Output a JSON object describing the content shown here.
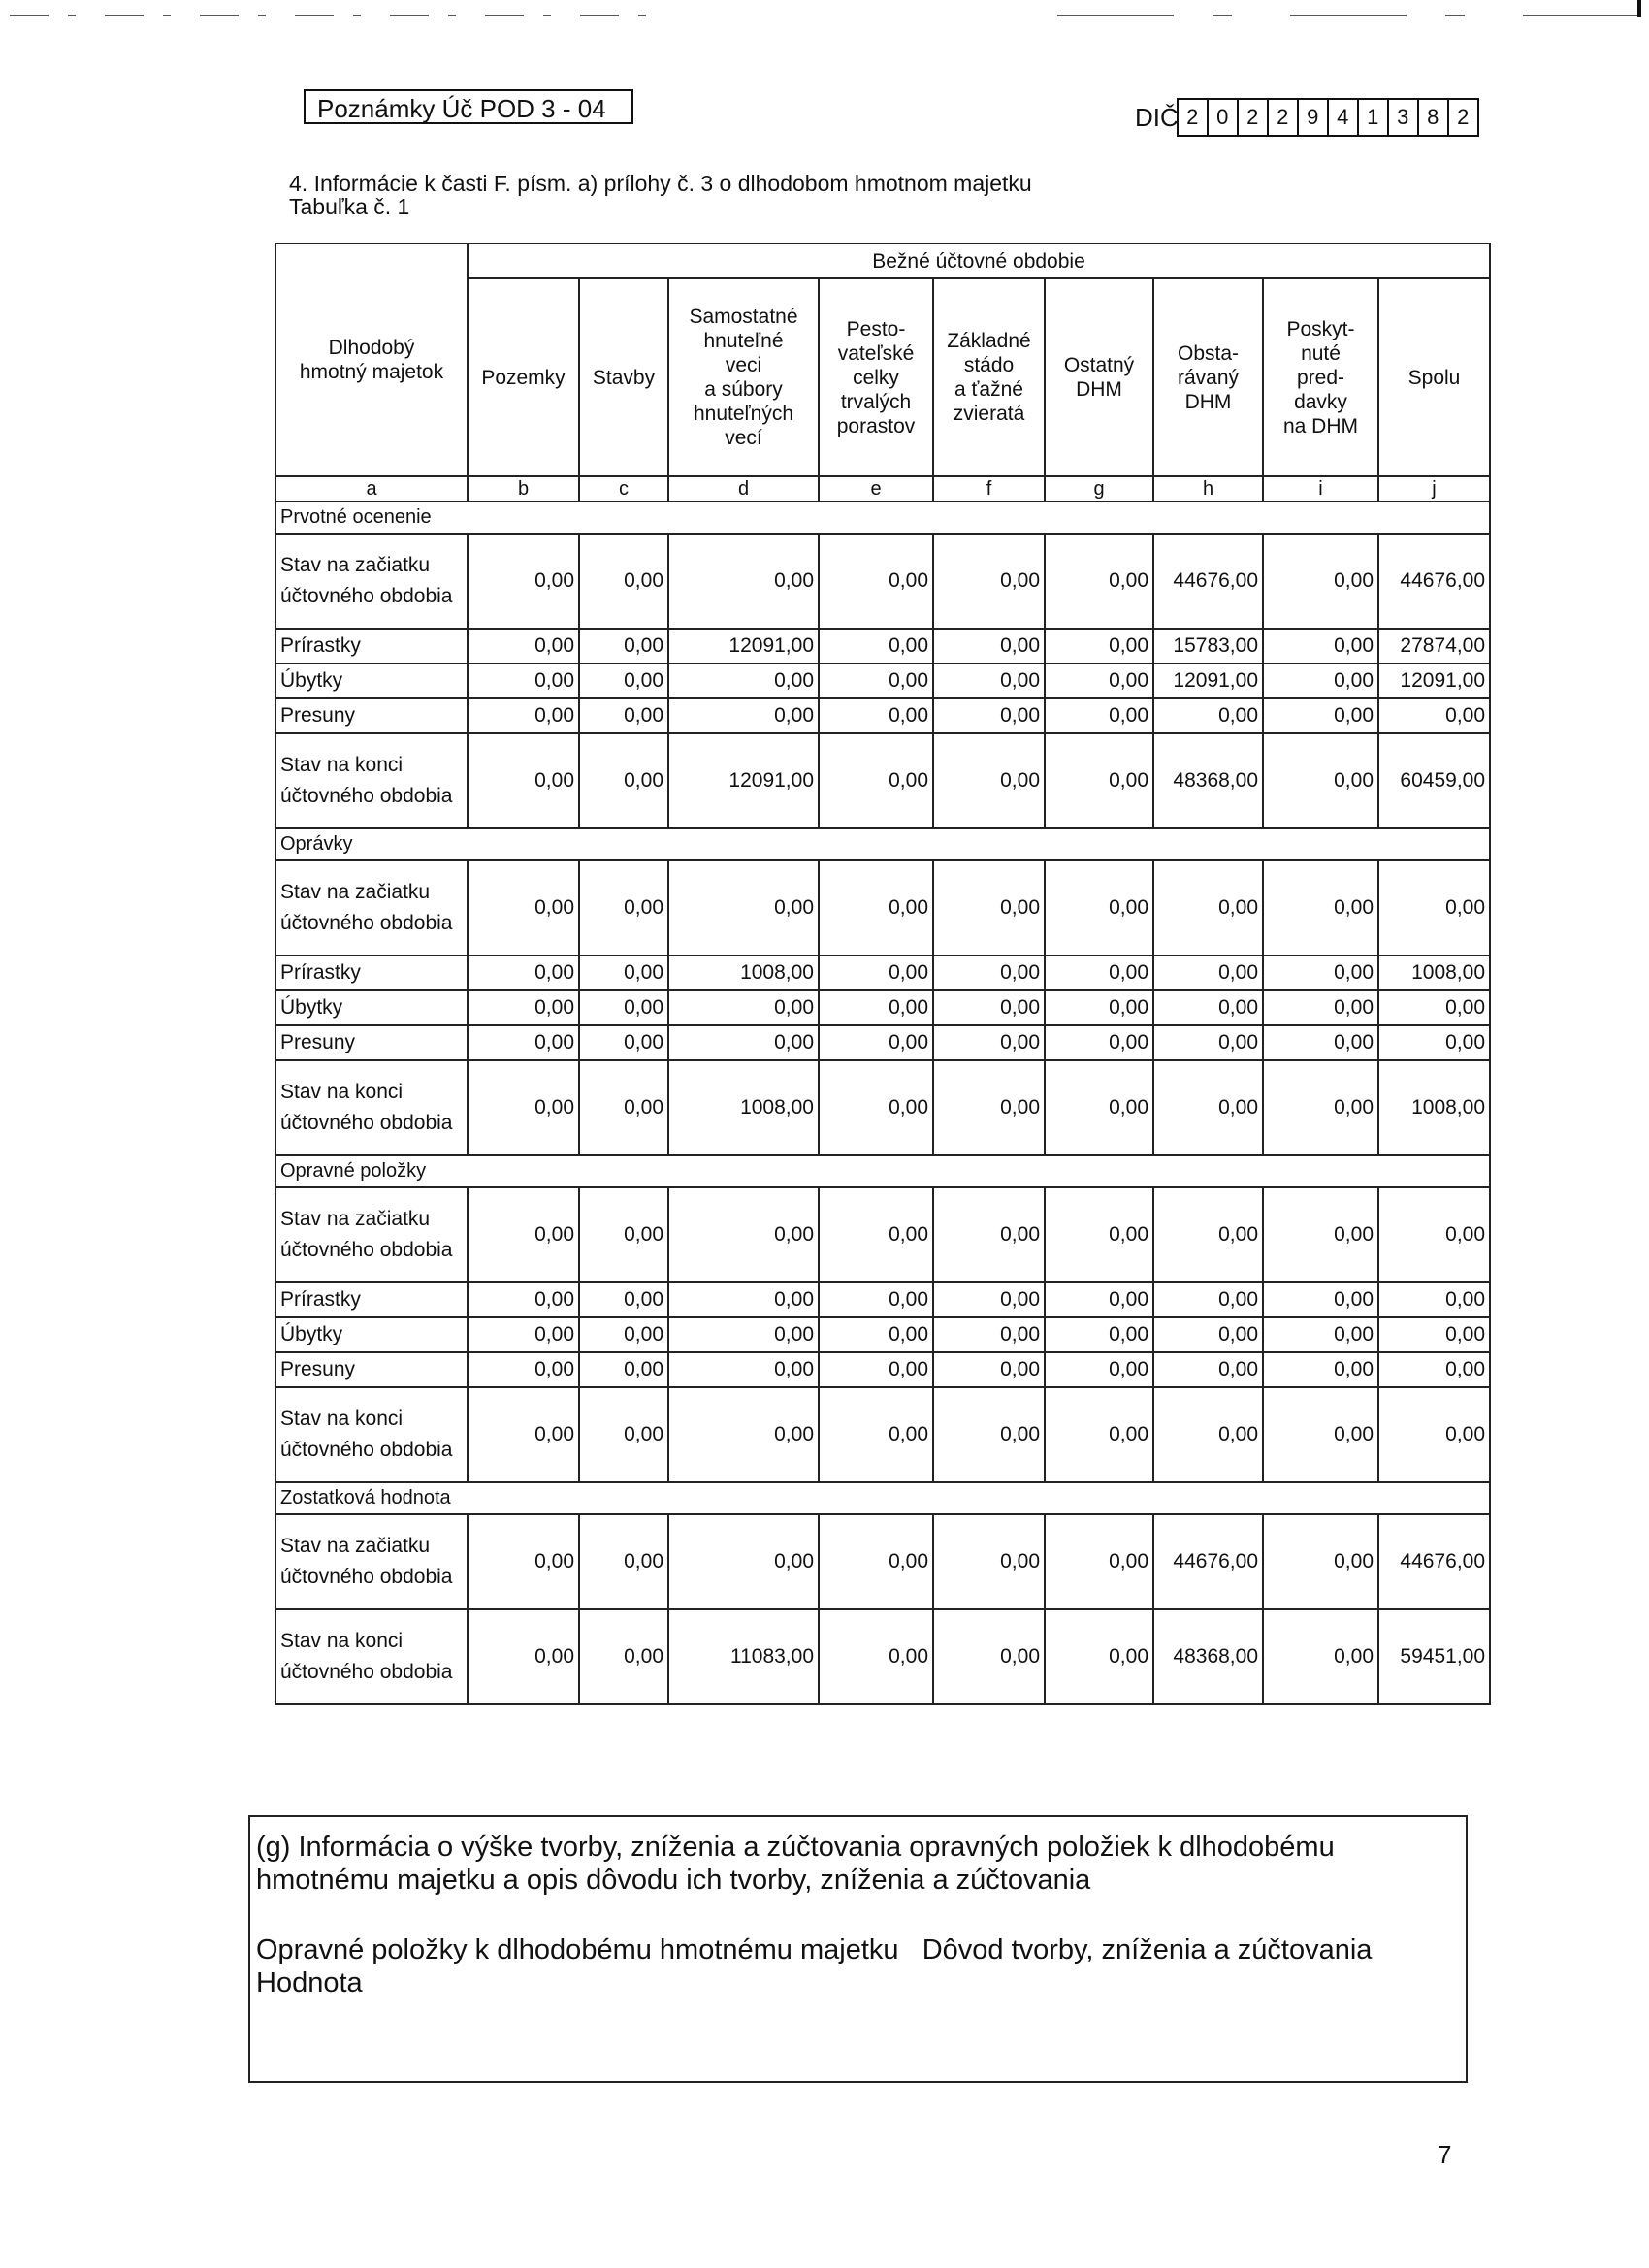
{
  "header": {
    "form_label": "Poznámky Úč POD 3 - 04",
    "dic_label": "DIČ",
    "dic_digits": [
      "2",
      "0",
      "2",
      "2",
      "9",
      "4",
      "1",
      "3",
      "8",
      "2"
    ]
  },
  "heading": "4. Informácie k časti F. písm. a) prílohy č. 3 o dlhodobom hmotnom majetku",
  "table_caption": "Tabuľka č. 1",
  "table": {
    "row_header": "Dlhodobý\nhmotný majetok",
    "group_header": "Bežné účtovné obdobie",
    "columns": [
      "Pozemky",
      "Stavby",
      "Samostatné\nhnuteľné\nveci\na súbory\nhnuteľných\nvecí",
      "Pesto-\nvateľské\ncelky\ntrvalých\nporastov",
      "Základné\nstádo\na ťažné\nzvieratá",
      "Ostatný\nDHM",
      "Obsta-\nrávaný\nDHM",
      "Poskyt-\nnuté\npred-\ndavky\nna DHM",
      "Spolu"
    ],
    "letters": [
      "a",
      "b",
      "c",
      "d",
      "e",
      "f",
      "g",
      "h",
      "i",
      "j"
    ],
    "sections": [
      {
        "title": "Prvotné ocenenie",
        "rows": [
          {
            "label": "Stav na začiatku účtovného obdobia",
            "values": [
              "0,00",
              "0,00",
              "0,00",
              "0,00",
              "0,00",
              "0,00",
              "44676,00",
              "0,00",
              "44676,00"
            ]
          },
          {
            "label": "Prírastky",
            "values": [
              "0,00",
              "0,00",
              "12091,00",
              "0,00",
              "0,00",
              "0,00",
              "15783,00",
              "0,00",
              "27874,00"
            ]
          },
          {
            "label": "Úbytky",
            "values": [
              "0,00",
              "0,00",
              "0,00",
              "0,00",
              "0,00",
              "0,00",
              "12091,00",
              "0,00",
              "12091,00"
            ]
          },
          {
            "label": "Presuny",
            "values": [
              "0,00",
              "0,00",
              "0,00",
              "0,00",
              "0,00",
              "0,00",
              "0,00",
              "0,00",
              "0,00"
            ]
          },
          {
            "label": "Stav na konci účtovného obdobia",
            "values": [
              "0,00",
              "0,00",
              "12091,00",
              "0,00",
              "0,00",
              "0,00",
              "48368,00",
              "0,00",
              "60459,00"
            ]
          }
        ]
      },
      {
        "title": "Oprávky",
        "rows": [
          {
            "label": "Stav na začiatku účtovného obdobia",
            "values": [
              "0,00",
              "0,00",
              "0,00",
              "0,00",
              "0,00",
              "0,00",
              "0,00",
              "0,00",
              "0,00"
            ]
          },
          {
            "label": "Prírastky",
            "values": [
              "0,00",
              "0,00",
              "1008,00",
              "0,00",
              "0,00",
              "0,00",
              "0,00",
              "0,00",
              "1008,00"
            ]
          },
          {
            "label": "Úbytky",
            "values": [
              "0,00",
              "0,00",
              "0,00",
              "0,00",
              "0,00",
              "0,00",
              "0,00",
              "0,00",
              "0,00"
            ]
          },
          {
            "label": "Presuny",
            "values": [
              "0,00",
              "0,00",
              "0,00",
              "0,00",
              "0,00",
              "0,00",
              "0,00",
              "0,00",
              "0,00"
            ]
          },
          {
            "label": "Stav na konci účtovného obdobia",
            "values": [
              "0,00",
              "0,00",
              "1008,00",
              "0,00",
              "0,00",
              "0,00",
              "0,00",
              "0,00",
              "1008,00"
            ]
          }
        ]
      },
      {
        "title": "Opravné položky",
        "rows": [
          {
            "label": "Stav na začiatku účtovného obdobia",
            "values": [
              "0,00",
              "0,00",
              "0,00",
              "0,00",
              "0,00",
              "0,00",
              "0,00",
              "0,00",
              "0,00"
            ]
          },
          {
            "label": "Prírastky",
            "values": [
              "0,00",
              "0,00",
              "0,00",
              "0,00",
              "0,00",
              "0,00",
              "0,00",
              "0,00",
              "0,00"
            ]
          },
          {
            "label": "Úbytky",
            "values": [
              "0,00",
              "0,00",
              "0,00",
              "0,00",
              "0,00",
              "0,00",
              "0,00",
              "0,00",
              "0,00"
            ]
          },
          {
            "label": "Presuny",
            "values": [
              "0,00",
              "0,00",
              "0,00",
              "0,00",
              "0,00",
              "0,00",
              "0,00",
              "0,00",
              "0,00"
            ]
          },
          {
            "label": "Stav na konci účtovného obdobia",
            "values": [
              "0,00",
              "0,00",
              "0,00",
              "0,00",
              "0,00",
              "0,00",
              "0,00",
              "0,00",
              "0,00"
            ]
          }
        ]
      },
      {
        "title": "Zostatková hodnota",
        "rows": [
          {
            "label": "Stav na začiatku účtovného obdobia",
            "values": [
              "0,00",
              "0,00",
              "0,00",
              "0,00",
              "0,00",
              "0,00",
              "44676,00",
              "0,00",
              "44676,00"
            ]
          },
          {
            "label": "Stav na konci účtovného obdobia",
            "values": [
              "0,00",
              "0,00",
              "11083,00",
              "0,00",
              "0,00",
              "0,00",
              "48368,00",
              "0,00",
              "59451,00"
            ]
          }
        ]
      }
    ]
  },
  "note": {
    "title": "(g) Informácia o výške tvorby, zníženia a zúčtovania opravných položiek k dlhodobému hmotnému majetku a opis dôvodu ich tvorby, zníženia a zúčtovania",
    "columns_text": "Opravné položky k dlhodobému hmotnému majetku   Dôvod tvorby, zníženia a zúčtovania   Hodnota"
  },
  "page_number": "7"
}
